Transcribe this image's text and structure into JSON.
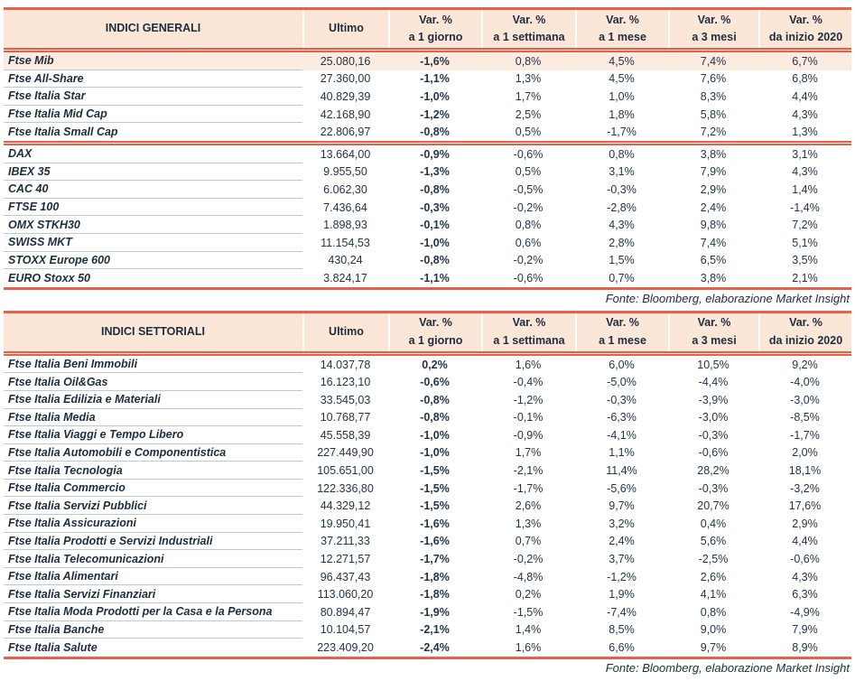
{
  "colors": {
    "accent_line": "#e8604a",
    "header_bg": "#fbe7d8",
    "highlight_row_bg": "#fcece0",
    "text": "#1d2d3e",
    "row_separator": "#c3c8cd"
  },
  "columns": {
    "ultimo": "Ultimo",
    "var_headers": [
      {
        "top": "Var. %",
        "bottom": "a 1 giorno"
      },
      {
        "top": "Var. %",
        "bottom": "a 1 settimana"
      },
      {
        "top": "Var. %",
        "bottom": "a 1 mese"
      },
      {
        "top": "Var. %",
        "bottom": "a 3 mesi"
      },
      {
        "top": "Var. %",
        "bottom": "da inizio 2020"
      }
    ]
  },
  "tables": [
    {
      "title": "INDICI GENERALI",
      "footer": "Fonte: Bloomberg, elaborazione Market Insight",
      "groups": [
        {
          "rows": [
            {
              "name": "Ftse Mib",
              "ultimo": "25.080,16",
              "vars": [
                "-1,6%",
                "0,8%",
                "4,5%",
                "7,4%",
                "6,7%"
              ],
              "highlight": true
            },
            {
              "name": "Ftse All-Share",
              "ultimo": "27.360,00",
              "vars": [
                "-1,1%",
                "1,3%",
                "4,5%",
                "7,6%",
                "6,8%"
              ]
            },
            {
              "name": "Ftse Italia Star",
              "ultimo": "40.829,39",
              "vars": [
                "-1,0%",
                "1,7%",
                "1,0%",
                "8,3%",
                "4,4%"
              ]
            },
            {
              "name": "Ftse Italia Mid Cap",
              "ultimo": "42.168,90",
              "vars": [
                "-1,2%",
                "2,5%",
                "1,8%",
                "5,8%",
                "4,3%"
              ]
            },
            {
              "name": "Ftse Italia Small Cap",
              "ultimo": "22.806,97",
              "vars": [
                "-0,8%",
                "0,5%",
                "-1,7%",
                "7,2%",
                "1,3%"
              ]
            }
          ]
        },
        {
          "rows": [
            {
              "name": "DAX",
              "ultimo": "13.664,00",
              "vars": [
                "-0,9%",
                "-0,6%",
                "0,8%",
                "3,8%",
                "3,1%"
              ]
            },
            {
              "name": "IBEX 35",
              "ultimo": "9.955,50",
              "vars": [
                "-1,3%",
                "0,5%",
                "3,1%",
                "7,9%",
                "4,3%"
              ]
            },
            {
              "name": "CAC 40",
              "ultimo": "6.062,30",
              "vars": [
                "-0,8%",
                "-0,5%",
                "-0,3%",
                "2,9%",
                "1,4%"
              ]
            },
            {
              "name": "FTSE 100",
              "ultimo": "7.436,64",
              "vars": [
                "-0,3%",
                "-0,2%",
                "-2,8%",
                "2,4%",
                "-1,4%"
              ]
            },
            {
              "name": "OMX STKH30",
              "ultimo": "1.898,93",
              "vars": [
                "-0,1%",
                "0,8%",
                "4,3%",
                "9,8%",
                "7,2%"
              ]
            },
            {
              "name": "SWISS MKT",
              "ultimo": "11.154,53",
              "vars": [
                "-1,0%",
                "0,6%",
                "2,8%",
                "7,4%",
                "5,1%"
              ]
            },
            {
              "name": "STOXX Europe 600",
              "ultimo": "430,24",
              "vars": [
                "-0,8%",
                "-0,2%",
                "1,5%",
                "6,5%",
                "3,5%"
              ]
            },
            {
              "name": "EURO Stoxx 50",
              "ultimo": "3.824,17",
              "vars": [
                "-1,1%",
                "-0,6%",
                "0,7%",
                "3,8%",
                "2,1%"
              ]
            }
          ]
        }
      ]
    },
    {
      "title": "INDICI SETTORIALI",
      "footer": "Fonte: Bloomberg, elaborazione Market Insight",
      "groups": [
        {
          "rows": [
            {
              "name": "Ftse Italia Beni Immobili",
              "ultimo": "14.037,78",
              "vars": [
                "0,2%",
                "1,6%",
                "6,0%",
                "10,5%",
                "9,2%"
              ]
            },
            {
              "name": "Ftse Italia Oil&Gas",
              "ultimo": "16.123,10",
              "vars": [
                "-0,6%",
                "-0,4%",
                "-5,0%",
                "-4,4%",
                "-4,0%"
              ]
            },
            {
              "name": "Ftse Italia Edilizia e Materiali",
              "ultimo": "33.545,03",
              "vars": [
                "-0,8%",
                "-1,2%",
                "-0,3%",
                "-3,9%",
                "-3,0%"
              ]
            },
            {
              "name": "Ftse Italia Media",
              "ultimo": "10.768,77",
              "vars": [
                "-0,8%",
                "-0,1%",
                "-6,3%",
                "-3,0%",
                "-8,5%"
              ]
            },
            {
              "name": "Ftse Italia Viaggi e Tempo Libero",
              "ultimo": "45.558,39",
              "vars": [
                "-1,0%",
                "-0,9%",
                "-4,1%",
                "-0,3%",
                "-1,7%"
              ]
            },
            {
              "name": "Ftse Italia Automobili e Componentistica",
              "ultimo": "227.449,90",
              "vars": [
                "-1,0%",
                "1,7%",
                "1,1%",
                "-0,6%",
                "2,0%"
              ]
            },
            {
              "name": "Ftse Italia Tecnologia",
              "ultimo": "105.651,00",
              "vars": [
                "-1,5%",
                "-2,1%",
                "11,4%",
                "28,2%",
                "18,1%"
              ]
            },
            {
              "name": "Ftse Italia Commercio",
              "ultimo": "122.336,80",
              "vars": [
                "-1,5%",
                "-1,7%",
                "-5,6%",
                "-0,3%",
                "-3,2%"
              ]
            },
            {
              "name": "Ftse Italia Servizi Pubblici",
              "ultimo": "44.329,12",
              "vars": [
                "-1,5%",
                "2,6%",
                "9,7%",
                "20,7%",
                "17,6%"
              ]
            },
            {
              "name": "Ftse Italia Assicurazioni",
              "ultimo": "19.950,41",
              "vars": [
                "-1,6%",
                "1,3%",
                "3,2%",
                "0,4%",
                "2,9%"
              ]
            },
            {
              "name": "Ftse Italia Prodotti e Servizi Industriali",
              "ultimo": "37.211,33",
              "vars": [
                "-1,6%",
                "0,7%",
                "2,4%",
                "5,6%",
                "4,4%"
              ]
            },
            {
              "name": "Ftse Italia Telecomunicazioni",
              "ultimo": "12.271,57",
              "vars": [
                "-1,7%",
                "-0,2%",
                "3,7%",
                "-2,5%",
                "-0,6%"
              ]
            },
            {
              "name": "Ftse Italia Alimentari",
              "ultimo": "96.437,43",
              "vars": [
                "-1,8%",
                "-4,8%",
                "-1,2%",
                "2,6%",
                "4,3%"
              ]
            },
            {
              "name": "Ftse Italia Servizi Finanziari",
              "ultimo": "113.060,20",
              "vars": [
                "-1,8%",
                "0,2%",
                "1,9%",
                "4,1%",
                "6,3%"
              ]
            },
            {
              "name": "Ftse Italia Moda Prodotti per la Casa e la Persona",
              "ultimo": "80.894,47",
              "vars": [
                "-1,9%",
                "-1,5%",
                "-7,4%",
                "0,8%",
                "-4,9%"
              ]
            },
            {
              "name": "Ftse Italia Banche",
              "ultimo": "10.104,57",
              "vars": [
                "-2,1%",
                "1,4%",
                "8,5%",
                "9,0%",
                "7,9%"
              ]
            },
            {
              "name": "Ftse Italia Salute",
              "ultimo": "223.409,20",
              "vars": [
                "-2,4%",
                "1,6%",
                "6,6%",
                "9,7%",
                "8,9%"
              ]
            }
          ]
        }
      ]
    }
  ]
}
